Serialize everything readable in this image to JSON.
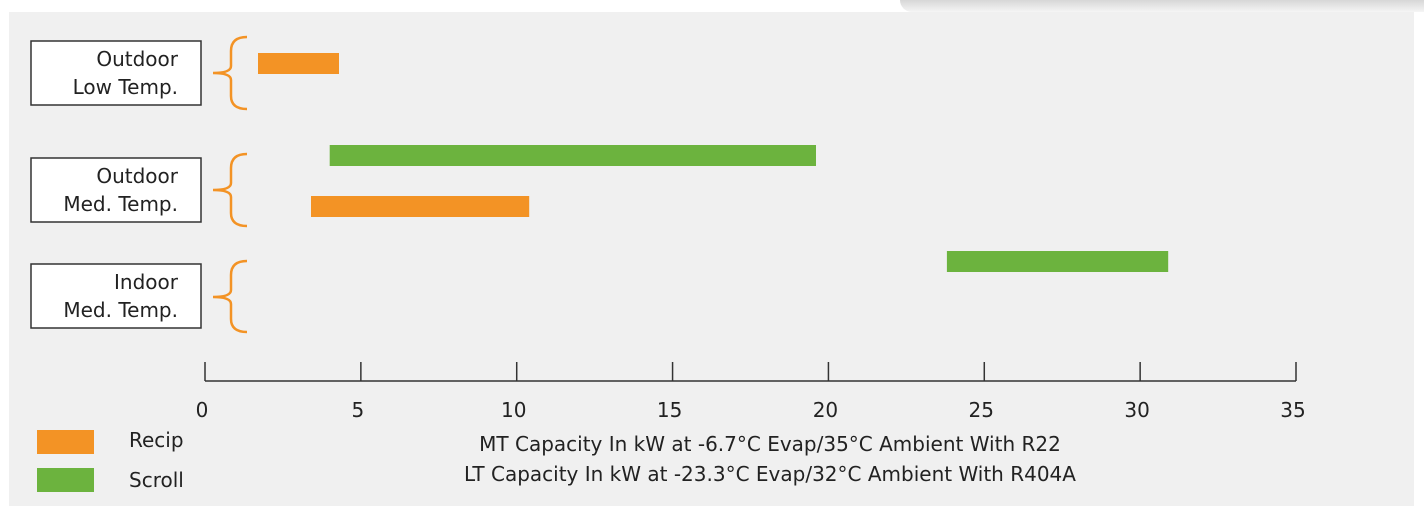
{
  "chart_data": {
    "type": "range-bar",
    "groups": [
      {
        "label_lines": [
          "Outdoor",
          "Low Temp."
        ]
      },
      {
        "label_lines": [
          "Outdoor",
          "Med. Temp."
        ]
      },
      {
        "label_lines": [
          "Indoor",
          "Med. Temp."
        ]
      }
    ],
    "bars": [
      {
        "group": "Outdoor Low Temp.",
        "series": "Recip",
        "start": 1.7,
        "end": 4.3
      },
      {
        "group": "Outdoor Med. Temp.",
        "series": "Scroll",
        "start": 4.0,
        "end": 19.6
      },
      {
        "group": "Outdoor Med. Temp.",
        "series": "Recip",
        "start": 3.4,
        "end": 10.4
      },
      {
        "group": "Indoor Med. Temp.",
        "series": "Scroll",
        "start": 23.8,
        "end": 30.9
      }
    ],
    "series": [
      {
        "name": "Recip",
        "color": "#f39325"
      },
      {
        "name": "Scroll",
        "color": "#6cb33e"
      }
    ],
    "xlim": [
      0,
      35
    ],
    "xticks": [
      0,
      5,
      10,
      15,
      20,
      25,
      30,
      35
    ],
    "xlabel_lines": [
      "MT Capacity In kW at -6.7°C Evap/35°C Ambient With R22",
      "LT Capacity In kW at -23.3°C Evap/32°C Ambient With R404A"
    ],
    "grid": false,
    "legend_position": "bottom-left",
    "bracket_color": "#f39325"
  }
}
